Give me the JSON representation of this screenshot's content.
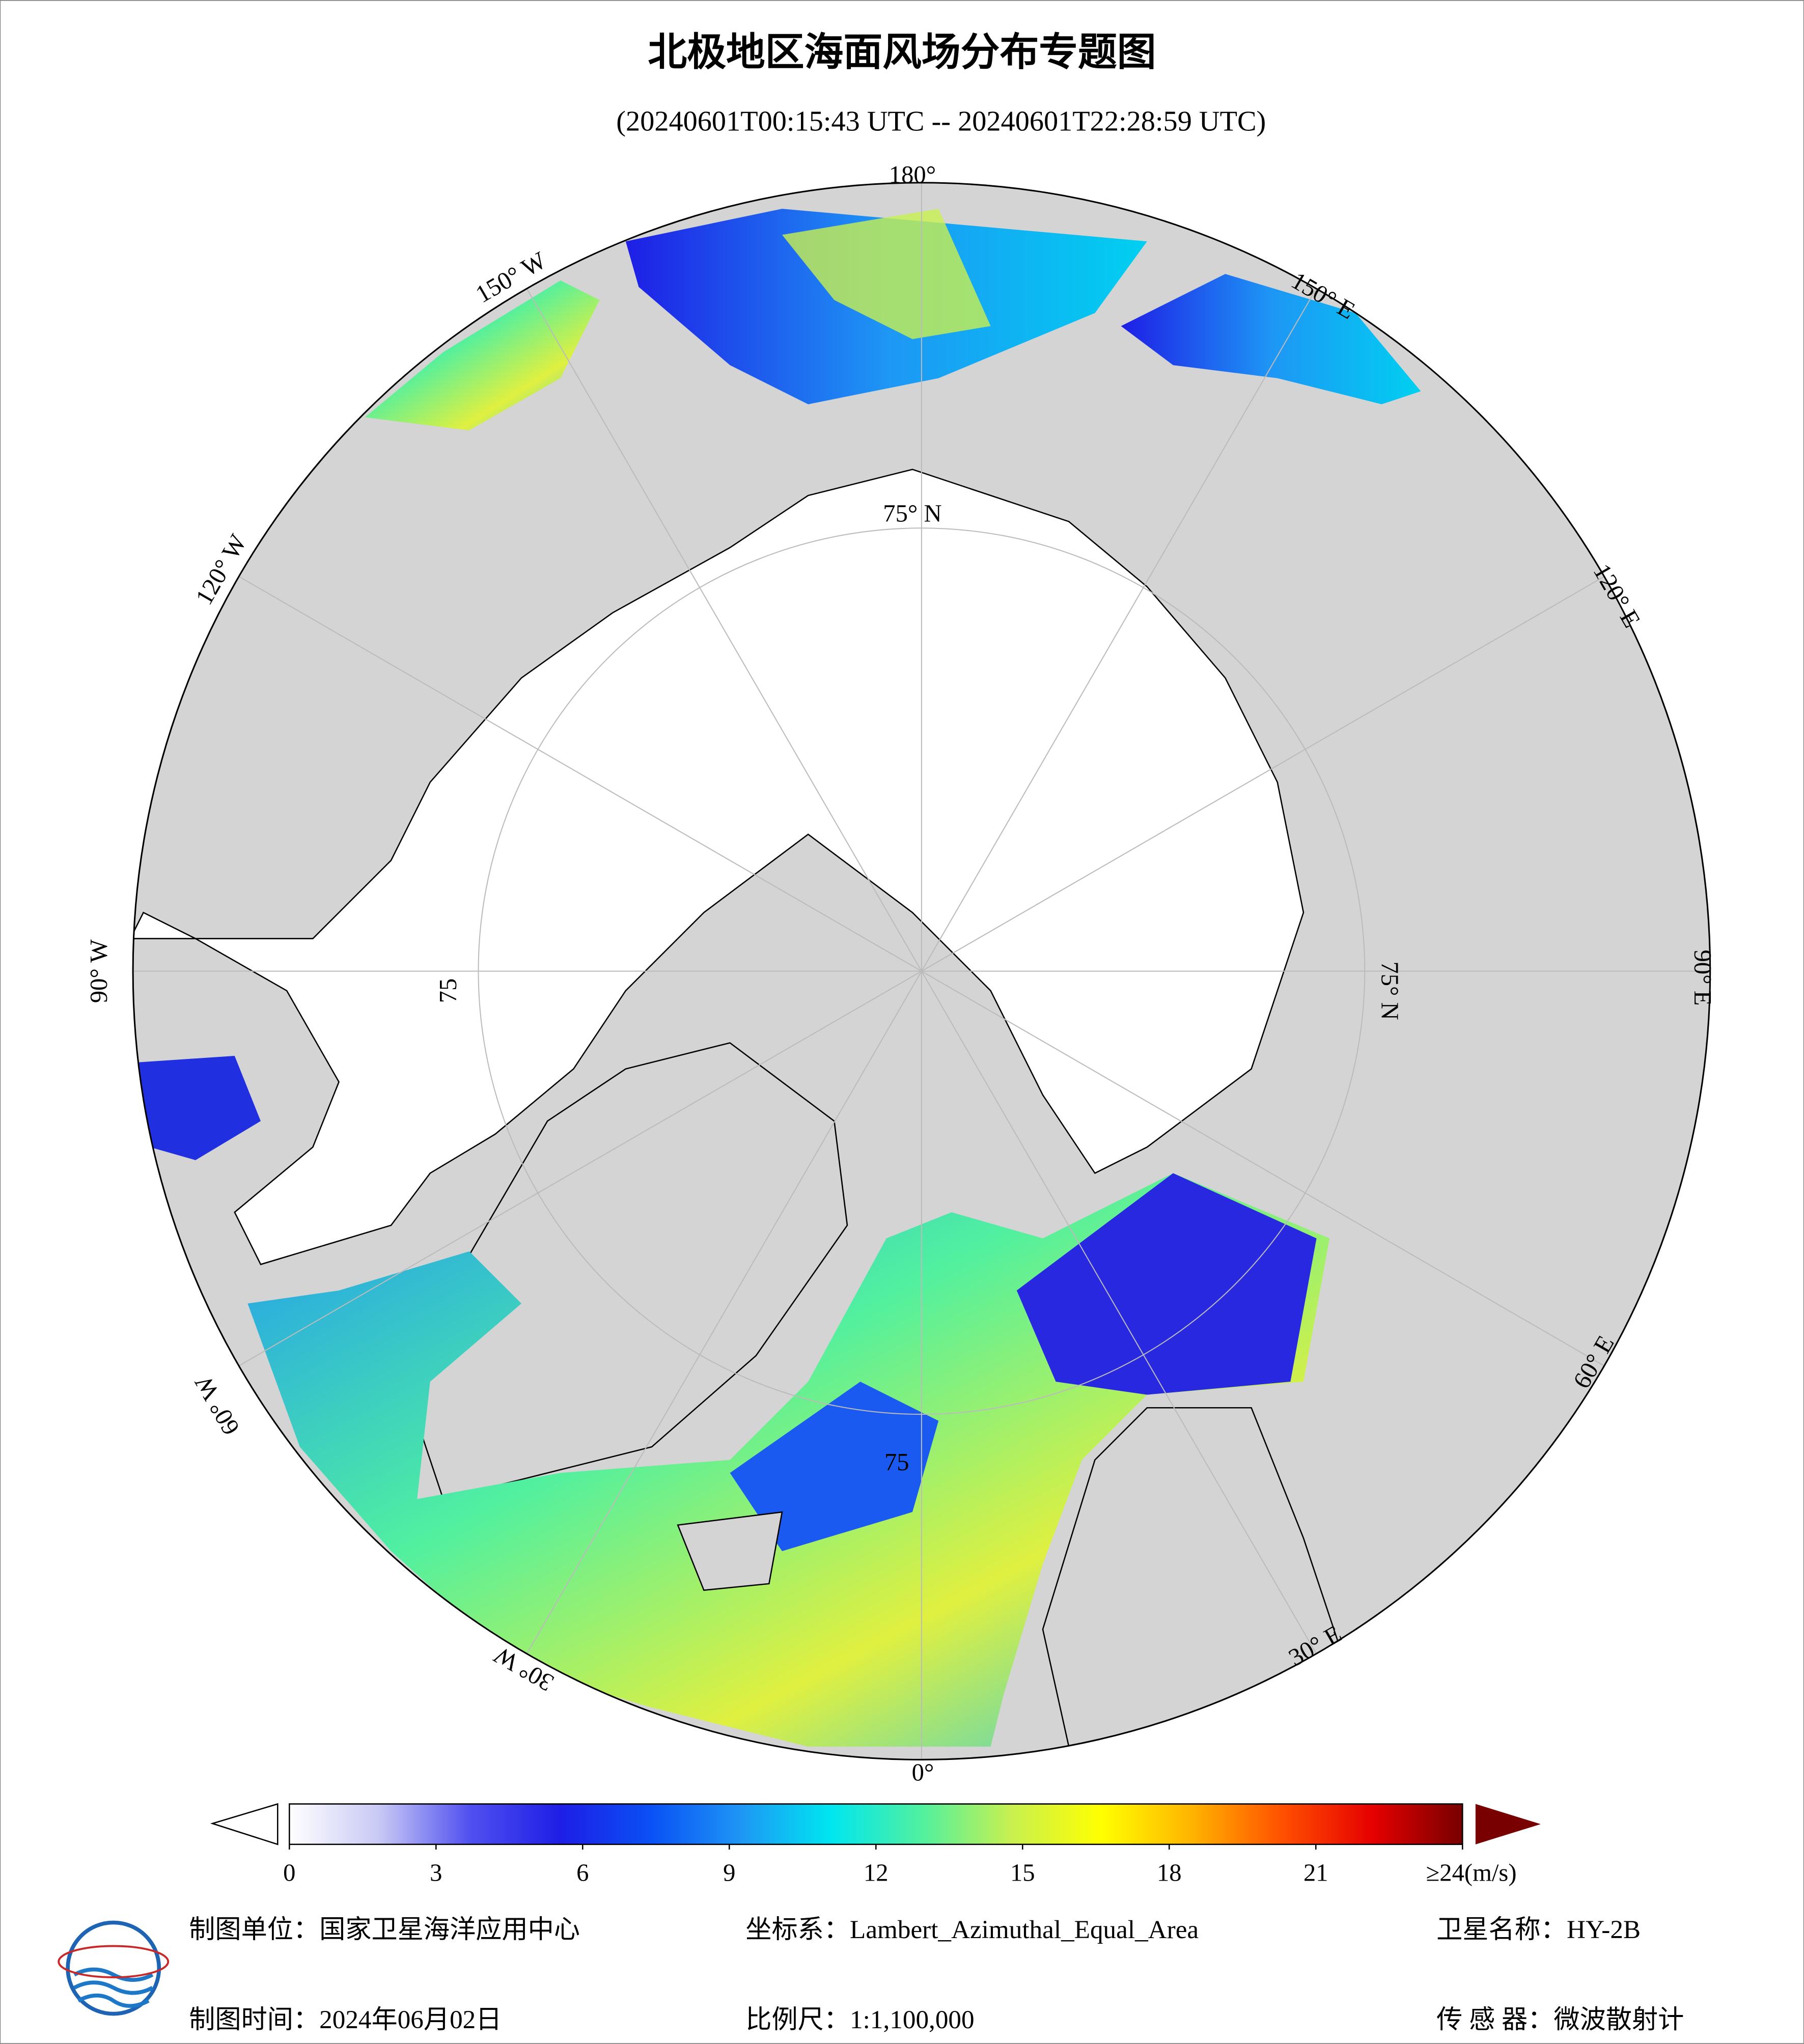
{
  "title": "北极地区海面风场分布专题图",
  "subtitle": "(20240601T00:15:43 UTC -- 20240601T22:28:59 UTC)",
  "map": {
    "longitude_labels": [
      "180°",
      "150° E",
      "120° E",
      "90° E",
      "60° E",
      "30° E",
      "0°",
      "30° W",
      "60° W",
      "90° W",
      "120° W",
      "150° W"
    ],
    "latitude_labels": [
      "75° N",
      "75° N",
      "75",
      "75"
    ]
  },
  "colorbar": {
    "range": [
      0,
      24
    ],
    "ticks": [
      0,
      3,
      6,
      9,
      12,
      15,
      18,
      21,
      {
        "value": 24,
        "label": "≥24(m/s)"
      }
    ],
    "colors": [
      "#ffffff",
      "#c8c8f5",
      "#5050f0",
      "#1e1ee6",
      "#0a50f5",
      "#1e96f5",
      "#00e6f0",
      "#50f0a0",
      "#c8f050",
      "#ffff00",
      "#ffb400",
      "#ff5000",
      "#e60000",
      "#780000"
    ]
  },
  "footer": {
    "unit": "制图单位：国家卫星海洋应用中心",
    "projection": "坐标系：Lambert_Azimuthal_Equal_Area",
    "satellite": "卫星名称：HY-2B",
    "date": "制图时间：2024年06月02日",
    "scale": "比例尺：1:1,100,000",
    "sensor": "传 感 器：微波散射计"
  }
}
